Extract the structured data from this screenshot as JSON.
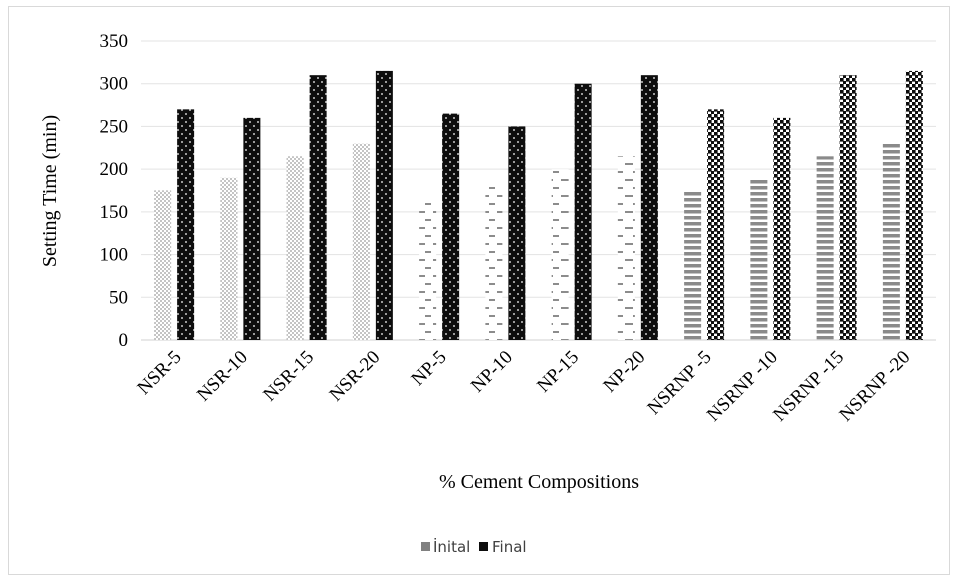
{
  "chart_data": {
    "type": "bar",
    "title": "",
    "xlabel": "% Cement Compositions",
    "ylabel": "Setting Time (min)",
    "ylim": [
      0,
      350
    ],
    "yticks": [
      0,
      50,
      100,
      150,
      200,
      250,
      300,
      350
    ],
    "grid": true,
    "legend_position": "bottom",
    "categories": [
      "NSR-5",
      "NSR-10",
      "NSR-15",
      "NSR-20",
      "NP-5",
      "NP-10",
      "NP-15",
      "NP-20",
      "NSRNP -5",
      "NSRNP -10",
      "NSRNP -15",
      "NSRNP -20"
    ],
    "series": [
      {
        "name": "İnital",
        "color": "#808080",
        "values": [
          175,
          190,
          215,
          230,
          165,
          180,
          200,
          215,
          175,
          190,
          215,
          230
        ]
      },
      {
        "name": "Final",
        "color": "#0d0d0d",
        "values": [
          270,
          260,
          310,
          315,
          265,
          250,
          300,
          310,
          270,
          260,
          310,
          315
        ]
      }
    ],
    "patterns": {
      "initial": [
        "dots-light",
        "dots-light",
        "dots-light",
        "dots-light",
        "dashes",
        "dashes",
        "dashes",
        "dashes",
        "stripes",
        "stripes",
        "stripes",
        "stripes"
      ],
      "final": [
        "dark-dots",
        "dark-dots",
        "dark-dots",
        "dark-dots",
        "dark-dots",
        "dark-dots",
        "dark-dots",
        "dark-dots",
        "checker",
        "checker",
        "checker",
        "checker"
      ]
    }
  }
}
